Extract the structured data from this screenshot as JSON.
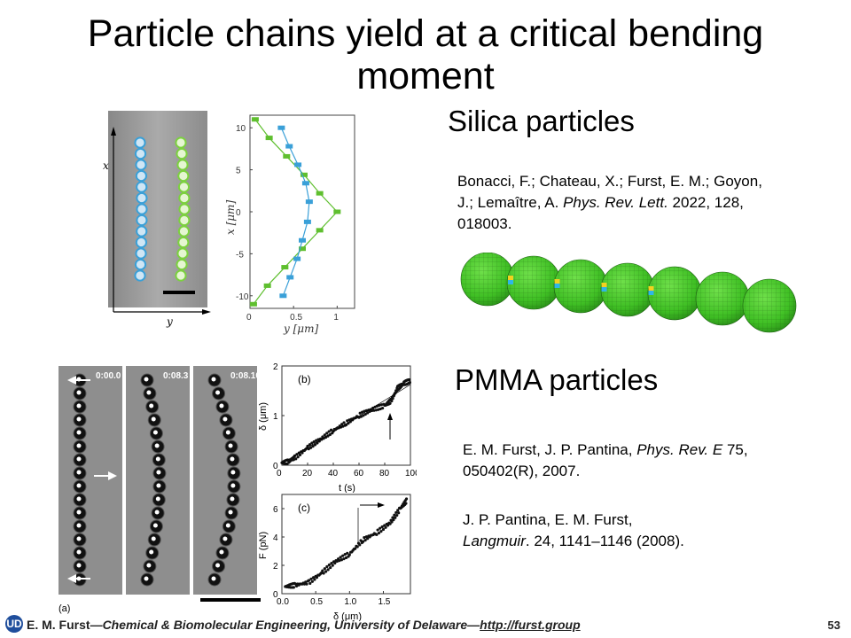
{
  "slide": {
    "title": "Particle chains yield at a critical bending moment",
    "page_number": "53"
  },
  "silica": {
    "heading": "Silica particles",
    "reference": {
      "authors": "Bonacci, F.; Chateau, X.; Furst, E. M.; Goyon, J.; Lemaître, A.",
      "journal": "Phys. Rev. Lett.",
      "details": "2022, 128, 018003."
    },
    "micrograph": {
      "x_axis_label": "x",
      "y_axis_label": "y"
    },
    "profile_plot": {
      "xlabel": "y [μm]",
      "ylabel": "x [μm]",
      "x_ticks": [
        "0",
        "0.5",
        "1"
      ],
      "y_ticks": [
        "10",
        "5",
        "0",
        "-5",
        "-10"
      ]
    }
  },
  "pmma": {
    "heading": "PMMA particles",
    "reference_1": {
      "authors": "E. M. Furst, J. P. Pantina,",
      "journal": "Phys. Rev. E",
      "details": "75, 050402(R), 2007."
    },
    "reference_2": {
      "authors": "J. P. Pantina, E. M. Furst,",
      "journal": "Langmuir",
      "details": ". 24, 1141–1146 (2008)."
    },
    "frames": [
      "0:00.0",
      "0:08.3",
      "0:08.10"
    ],
    "panel_a_label": "(a)",
    "plot_b": {
      "label": "(b)",
      "xlabel": "t (s)",
      "ylabel": "δ (μm)",
      "x_ticks": [
        "0",
        "20",
        "40",
        "60",
        "80",
        "100"
      ],
      "y_ticks": [
        "0",
        "1",
        "2"
      ]
    },
    "plot_c": {
      "label": "(c)",
      "xlabel": "δ (μm)",
      "ylabel": "F (pN)",
      "x_ticks": [
        "0.0",
        "0.5",
        "1.0",
        "1.5"
      ],
      "y_ticks": [
        "0",
        "2",
        "4",
        "6"
      ]
    }
  },
  "footer": {
    "author": "E. M. Furst",
    "affiliation": "—Chemical & Biomolecular Engineering, University of Delaware—",
    "link": "http://furst.group",
    "logo_text": "UD"
  },
  "chart_data": [
    {
      "type": "line",
      "title": "",
      "xlabel": "y [μm]",
      "ylabel": "x [μm]",
      "xlim": [
        0,
        1.2
      ],
      "ylim": [
        -11.5,
        11.5
      ],
      "series": [
        {
          "color": "#5fbf2f",
          "points": [
            [
              0.06,
              11
            ],
            [
              0.22,
              8.8
            ],
            [
              0.42,
              6.6
            ],
            [
              0.62,
              4.4
            ],
            [
              0.8,
              2.2
            ],
            [
              1.0,
              0
            ],
            [
              0.8,
              -2.2
            ],
            [
              0.6,
              -4.4
            ],
            [
              0.4,
              -6.6
            ],
            [
              0.2,
              -8.8
            ],
            [
              0.04,
              -11
            ]
          ]
        },
        {
          "color": "#3aa0d8",
          "points": [
            [
              0.36,
              10
            ],
            [
              0.45,
              7.8
            ],
            [
              0.55,
              5.6
            ],
            [
              0.64,
              3.4
            ],
            [
              0.68,
              1.2
            ],
            [
              0.66,
              -1.2
            ],
            [
              0.6,
              -3.4
            ],
            [
              0.54,
              -5.6
            ],
            [
              0.46,
              -7.8
            ],
            [
              0.38,
              -10
            ]
          ]
        }
      ]
    },
    {
      "type": "scatter",
      "title": "",
      "xlabel": "t (s)",
      "ylabel": "δ (μm)",
      "xlim": [
        0,
        100
      ],
      "ylim": [
        0,
        2
      ],
      "series": [
        {
          "points": [
            [
              0,
              0.05
            ],
            [
              5,
              0.07
            ],
            [
              10,
              0.15
            ],
            [
              20,
              0.35
            ],
            [
              30,
              0.52
            ],
            [
              40,
              0.7
            ],
            [
              50,
              0.85
            ],
            [
              60,
              1.0
            ],
            [
              70,
              1.12
            ],
            [
              80,
              1.2
            ],
            [
              85,
              1.3
            ],
            [
              90,
              1.55
            ],
            [
              95,
              1.65
            ],
            [
              100,
              1.7
            ]
          ]
        }
      ]
    },
    {
      "type": "scatter",
      "title": "",
      "xlabel": "δ (μm)",
      "ylabel": "F (pN)",
      "xlim": [
        0,
        1.9
      ],
      "ylim": [
        0,
        7
      ],
      "series": [
        {
          "points": [
            [
              0.05,
              0.5
            ],
            [
              0.2,
              0.6
            ],
            [
              0.4,
              0.8
            ],
            [
              0.6,
              1.5
            ],
            [
              0.8,
              2.3
            ],
            [
              1.0,
              2.8
            ],
            [
              1.2,
              3.8
            ],
            [
              1.4,
              4.3
            ],
            [
              1.6,
              5.0
            ],
            [
              1.75,
              6.0
            ],
            [
              1.85,
              6.6
            ]
          ]
        }
      ]
    }
  ]
}
